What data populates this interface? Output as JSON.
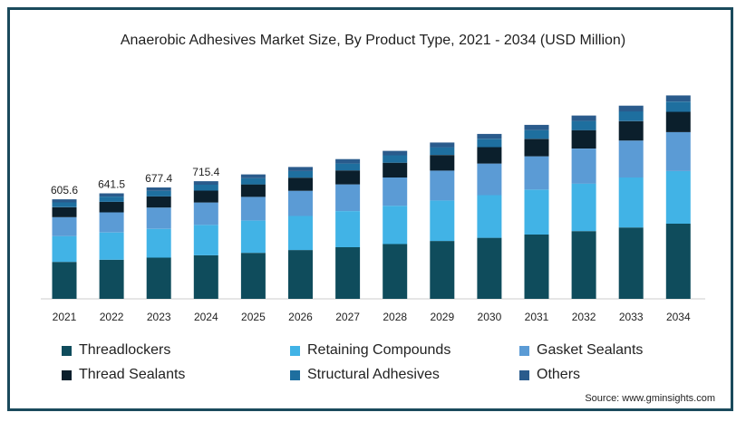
{
  "chart_data": {
    "type": "bar",
    "stacked": true,
    "title": "Anaerobic Adhesives Market Size, By Product Type, 2021 - 2034 (USD Million)",
    "xlabel": "",
    "ylabel": "",
    "categories": [
      "2021",
      "2022",
      "2023",
      "2024",
      "2025",
      "2026",
      "2027",
      "2028",
      "2029",
      "2030",
      "2031",
      "2032",
      "2033",
      "2034"
    ],
    "totals_labels": [
      "605.6",
      "641.5",
      "677.4",
      "715.4"
    ],
    "totals": [
      605.6,
      641.5,
      677.4,
      715.4,
      757,
      802,
      850,
      900,
      951,
      1003,
      1058,
      1115,
      1175,
      1237
    ],
    "series": [
      {
        "name": "Threadlockers",
        "color": "#0f4c5c",
        "values": [
          225,
          238,
          251,
          265,
          280,
          297,
          314,
          333,
          352,
          371,
          391,
          412,
          434,
          457
        ]
      },
      {
        "name": "Retaining Compounds",
        "color": "#41b3e6",
        "values": [
          157,
          166,
          175,
          185,
          196,
          207,
          220,
          233,
          246,
          260,
          274,
          289,
          304,
          320
        ]
      },
      {
        "name": "Gasket Sealants",
        "color": "#5b9bd5",
        "values": [
          115,
          122,
          129,
          136,
          144,
          153,
          162,
          172,
          182,
          192,
          202,
          213,
          225,
          237
        ]
      },
      {
        "name": "Thread Sealants",
        "color": "#0b1f2c",
        "values": [
          60,
          64,
          68,
          72,
          76,
          80,
          85,
          90,
          95,
          100,
          106,
          112,
          118,
          124
        ]
      },
      {
        "name": "Structural Adhesives",
        "color": "#1e6f9f",
        "values": [
          30,
          32,
          34,
          36,
          38,
          40,
          42,
          45,
          47,
          50,
          53,
          56,
          59,
          62
        ]
      },
      {
        "name": "Others",
        "color": "#2a5b8c",
        "values": [
          18.6,
          19.5,
          20.4,
          21.4,
          23,
          25,
          27,
          27,
          29,
          30,
          32,
          33,
          35,
          37
        ]
      }
    ],
    "ylim": [
      0,
      1300
    ],
    "grid": false,
    "legend_position": "bottom"
  },
  "source": "Source: www.gminsights.com"
}
